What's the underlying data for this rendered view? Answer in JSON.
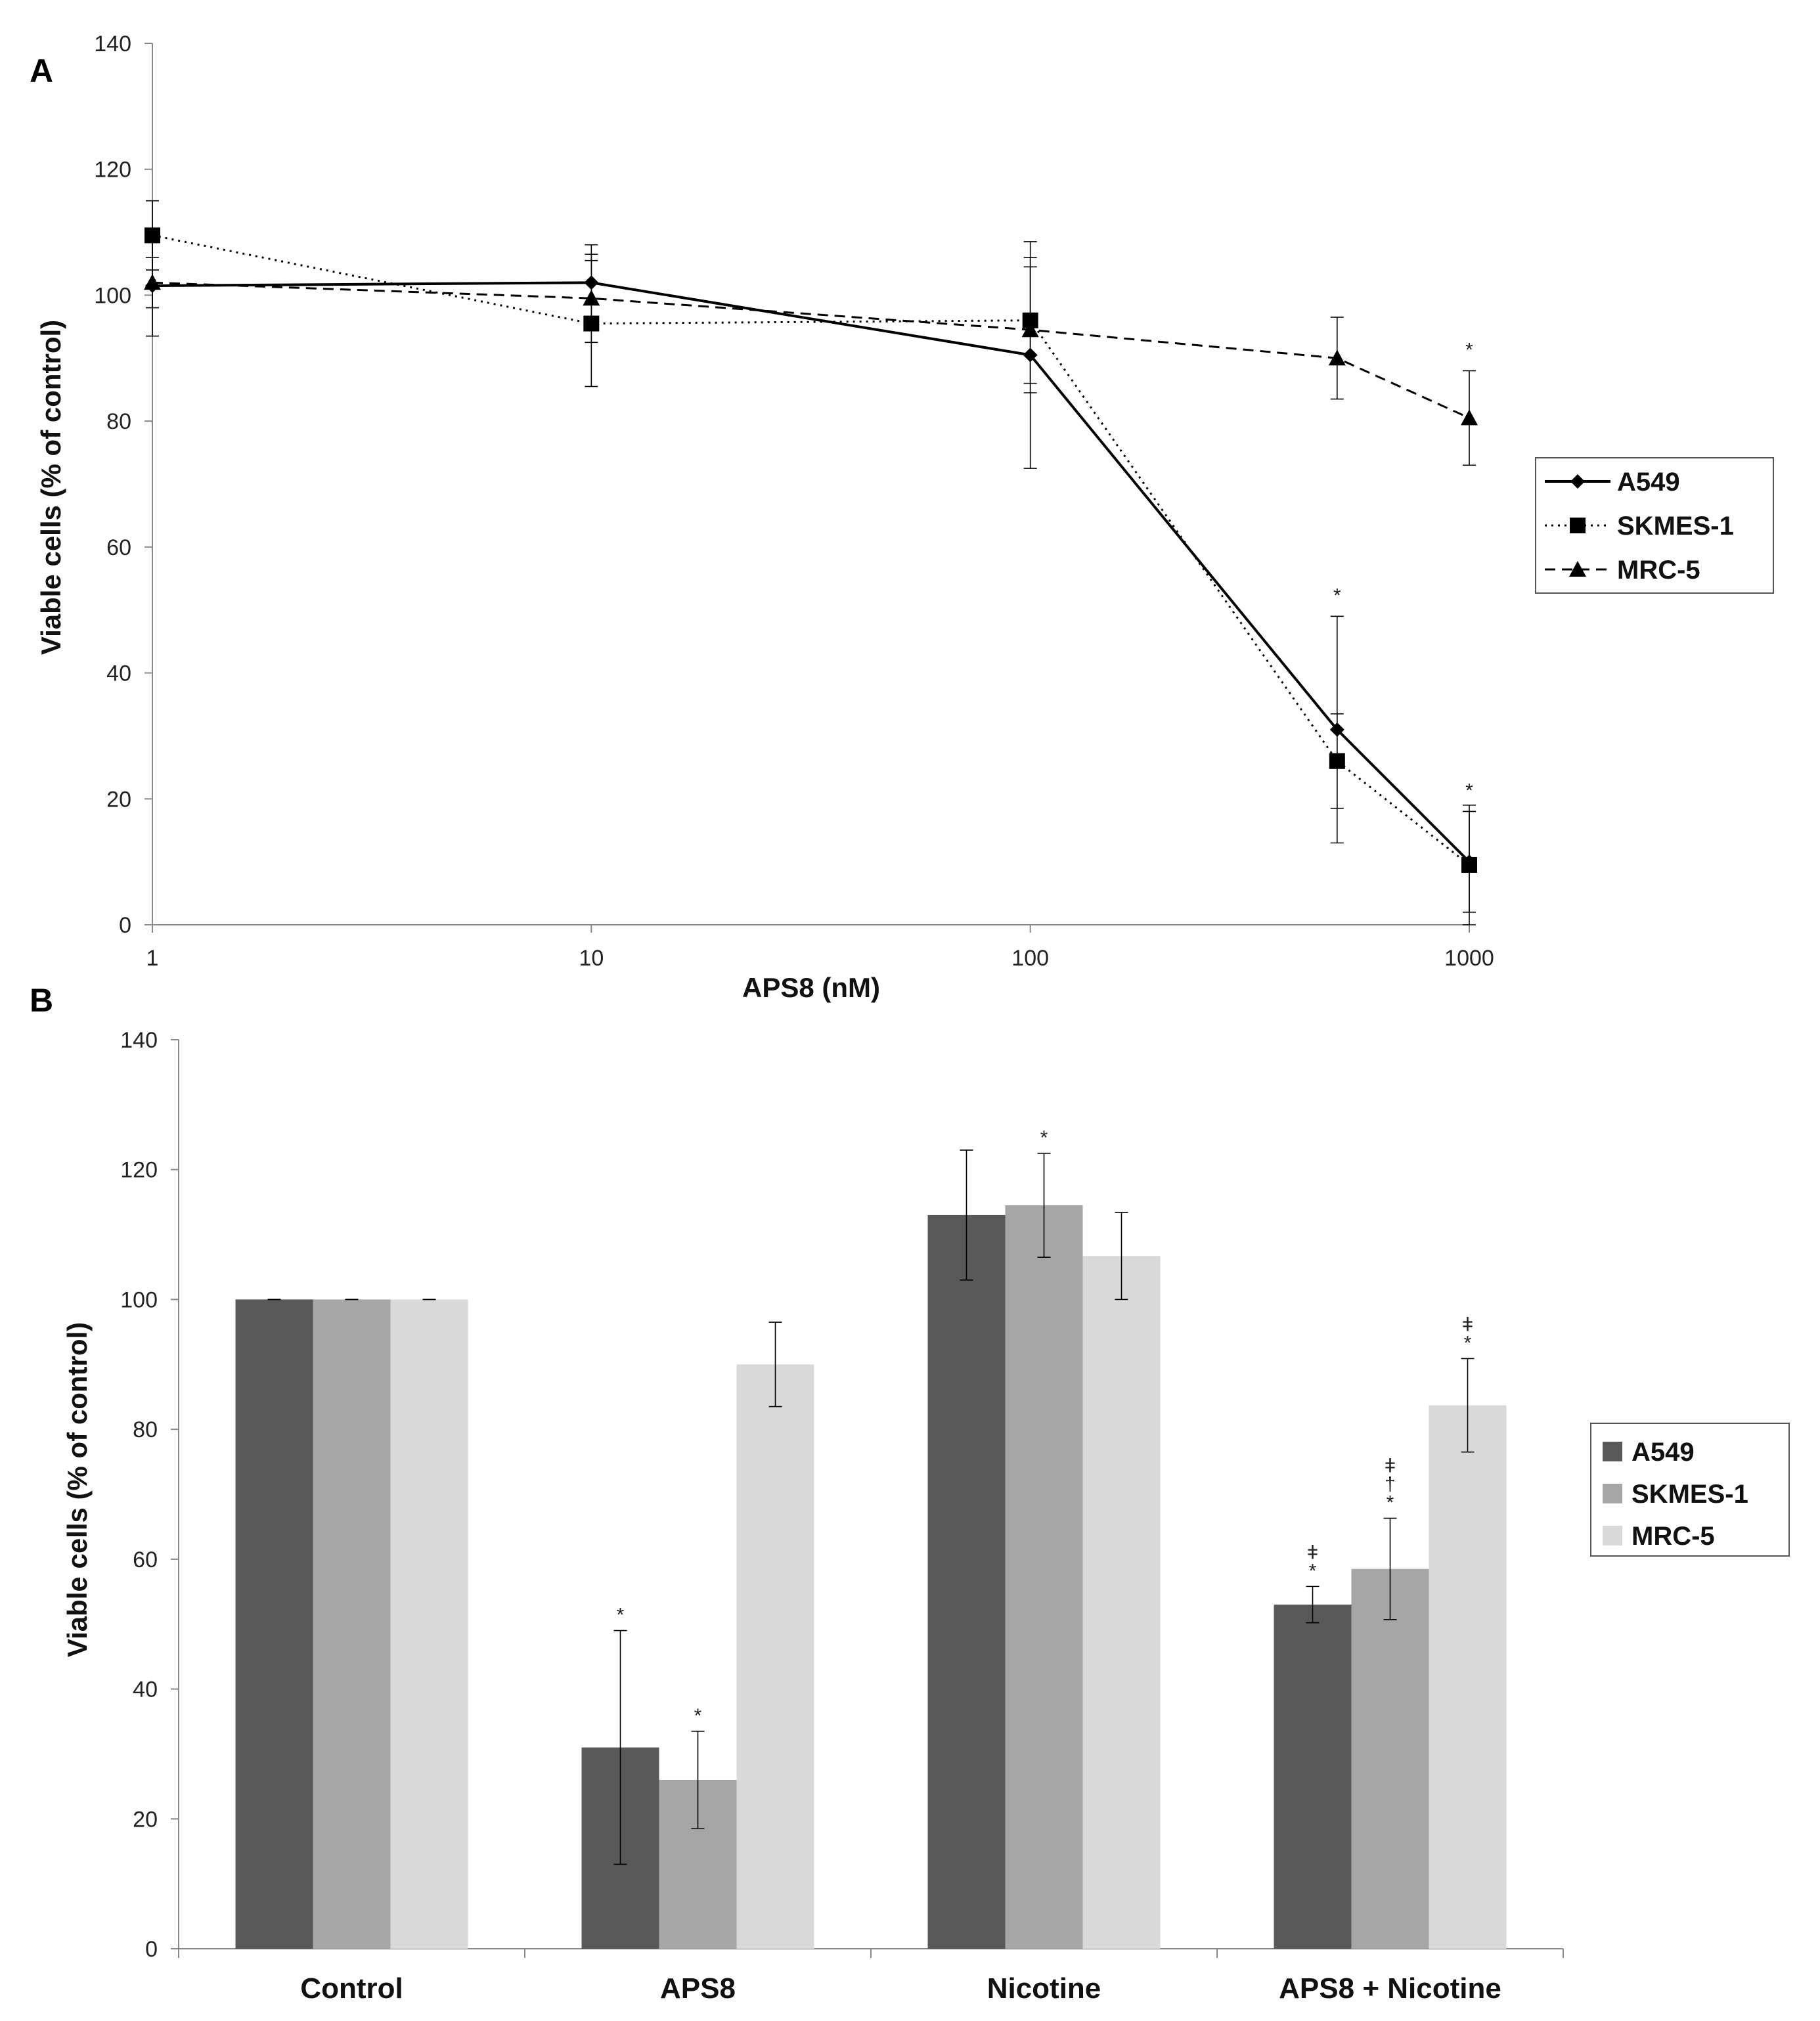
{
  "chart_data": [
    {
      "panel": "A",
      "type": "line",
      "xscale": "log",
      "xlabel": "APS8 (nM)",
      "ylabel": "Viable cells (% of control)",
      "ylim": [
        0,
        140
      ],
      "yticks": [
        0,
        20,
        40,
        60,
        80,
        100,
        120,
        140
      ],
      "xticks": [
        1,
        10,
        100,
        1000
      ],
      "xtick_labels": [
        "1",
        "10",
        "100",
        "1000"
      ],
      "x": [
        1,
        10,
        100,
        500,
        1000
      ],
      "legend_position": "right",
      "series": [
        {
          "name": "A549",
          "marker": "diamond",
          "dash": "solid",
          "values": [
            101.5,
            102,
            90.5,
            31,
            10
          ],
          "errors": [
            8,
            6,
            18,
            18,
            8
          ]
        },
        {
          "name": "SKMES-1",
          "marker": "square",
          "dash": "dotted",
          "values": [
            109.5,
            95.5,
            96,
            26,
            9.5
          ],
          "errors": [
            5.5,
            10,
            10,
            7.5,
            9.5
          ]
        },
        {
          "name": "MRC-5",
          "marker": "triangle",
          "dash": "dashed",
          "values": [
            102,
            99.5,
            94.5,
            90,
            80.5
          ],
          "errors": [
            4,
            7,
            10,
            6.5,
            7.5
          ]
        }
      ],
      "annotations": [
        {
          "x": 500,
          "series": "A549",
          "text": "*"
        },
        {
          "x": 1000,
          "series": "A549",
          "text": "*"
        },
        {
          "x": 1000,
          "series": "MRC-5",
          "text": "*"
        }
      ]
    },
    {
      "panel": "B",
      "type": "bar",
      "ylabel": "Viable cells (% of control)",
      "ylim": [
        0,
        140
      ],
      "yticks": [
        0,
        20,
        40,
        60,
        80,
        100,
        120,
        140
      ],
      "categories": [
        "Control",
        "APS8",
        "Nicotine",
        "APS8 + Nicotine"
      ],
      "legend_position": "right",
      "series": [
        {
          "name": "A549",
          "color": "#595959",
          "values": [
            100,
            31,
            113,
            53
          ],
          "errors": [
            0,
            18,
            10,
            2.8
          ]
        },
        {
          "name": "SKMES-1",
          "color": "#a6a6a6",
          "values": [
            100,
            26,
            114.5,
            58.5
          ],
          "errors": [
            0,
            7.5,
            8,
            7.8
          ]
        },
        {
          "name": "MRC-5",
          "color": "#d9d9d9",
          "values": [
            100,
            90,
            106.7,
            83.7
          ],
          "errors": [
            0,
            6.5,
            6.7,
            7.2
          ]
        }
      ],
      "annotations": [
        {
          "category": 1,
          "series": 0,
          "marks": [
            "*"
          ]
        },
        {
          "category": 1,
          "series": 1,
          "marks": [
            "*"
          ]
        },
        {
          "category": 2,
          "series": 1,
          "marks": [
            "*"
          ]
        },
        {
          "category": 3,
          "series": 0,
          "marks": [
            "ǂ",
            "*"
          ]
        },
        {
          "category": 3,
          "series": 1,
          "marks": [
            "ǂ",
            "†",
            "*"
          ]
        },
        {
          "category": 3,
          "series": 2,
          "marks": [
            "ǂ",
            "*"
          ]
        }
      ]
    }
  ]
}
